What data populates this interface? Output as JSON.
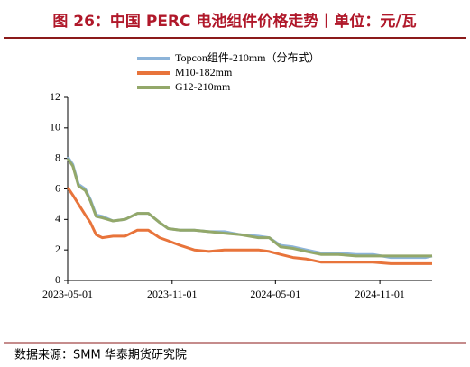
{
  "chart_data": {
    "type": "line",
    "title": "图 26：中国 PERC 电池组件价格走势丨单位：元/瓦",
    "source": "数据来源：SMM 华泰期货研究院",
    "x": [
      "2023-05-01",
      "2023-05-10",
      "2023-05-20",
      "2023-06-01",
      "2023-06-10",
      "2023-06-20",
      "2023-07-01",
      "2023-07-20",
      "2023-08-10",
      "2023-09-01",
      "2023-09-20",
      "2023-10-10",
      "2023-10-25",
      "2023-11-15",
      "2023-12-10",
      "2024-01-05",
      "2024-02-01",
      "2024-03-01",
      "2024-04-01",
      "2024-04-20",
      "2024-05-10",
      "2024-06-01",
      "2024-06-25",
      "2024-07-20",
      "2024-08-20",
      "2024-09-20",
      "2024-10-20",
      "2024-11-20",
      "2024-12-20",
      "2025-01-20",
      "2025-02-01"
    ],
    "series": [
      {
        "name": "Topcon组件-210mm（分布式）",
        "color": "#8db4d9",
        "values": [
          8.1,
          7.6,
          6.3,
          6.0,
          5.3,
          4.3,
          4.2,
          3.9,
          4.0,
          4.4,
          4.4,
          3.8,
          3.4,
          3.3,
          3.3,
          3.2,
          3.2,
          3.0,
          2.9,
          2.8,
          2.3,
          2.2,
          2.0,
          1.8,
          1.8,
          1.7,
          1.7,
          1.5,
          1.5,
          1.5,
          1.6
        ]
      },
      {
        "name": "M10-182mm",
        "color": "#e8743b",
        "values": [
          6.1,
          5.6,
          5.0,
          4.3,
          3.8,
          3.0,
          2.8,
          2.9,
          2.9,
          3.3,
          3.3,
          2.8,
          2.6,
          2.3,
          2.0,
          1.9,
          2.0,
          2.0,
          2.0,
          1.9,
          1.7,
          1.5,
          1.4,
          1.2,
          1.2,
          1.2,
          1.2,
          1.1,
          1.1,
          1.1,
          1.1
        ]
      },
      {
        "name": "G12-210mm",
        "color": "#93a86a",
        "values": [
          8.0,
          7.5,
          6.2,
          5.9,
          5.2,
          4.2,
          4.1,
          3.9,
          4.0,
          4.4,
          4.4,
          3.8,
          3.4,
          3.3,
          3.3,
          3.2,
          3.1,
          3.0,
          2.8,
          2.8,
          2.2,
          2.1,
          1.9,
          1.7,
          1.7,
          1.6,
          1.6,
          1.6,
          1.6,
          1.6,
          1.6
        ]
      }
    ],
    "xlim": [
      "2023-05-01",
      "2025-02-01"
    ],
    "xticks": [
      "2023-05-01",
      "2023-11-01",
      "2024-05-01",
      "2024-11-01"
    ],
    "ylim": [
      0,
      12
    ],
    "yticks": [
      0,
      2,
      4,
      6,
      8,
      10,
      12
    ]
  }
}
